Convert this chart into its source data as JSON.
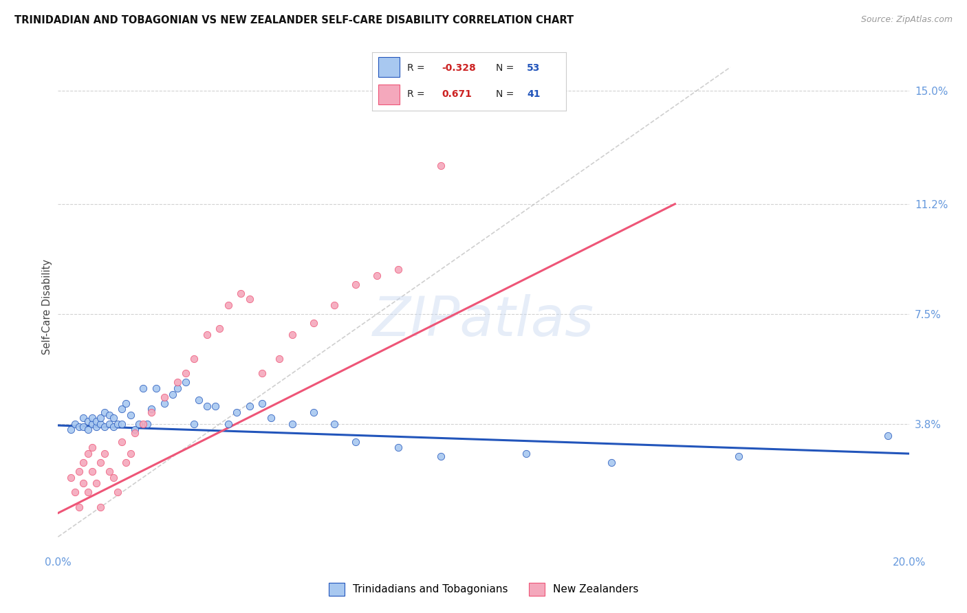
{
  "title": "TRINIDADIAN AND TOBAGONIAN VS NEW ZEALANDER SELF-CARE DISABILITY CORRELATION CHART",
  "source": "Source: ZipAtlas.com",
  "ylabel": "Self-Care Disability",
  "yticks": [
    0.0,
    0.038,
    0.075,
    0.112,
    0.15
  ],
  "ytick_labels": [
    "",
    "3.8%",
    "7.5%",
    "11.2%",
    "15.0%"
  ],
  "xlim": [
    0.0,
    0.2
  ],
  "ylim": [
    -0.005,
    0.16
  ],
  "watermark": "ZIPatlas",
  "color_blue": "#A8C8F0",
  "color_pink": "#F4A8BC",
  "line_blue": "#2255BB",
  "line_pink": "#EE5577",
  "line_diag": "#BBBBBB",
  "tick_color": "#6699DD",
  "blue_scatter_x": [
    0.003,
    0.004,
    0.005,
    0.006,
    0.006,
    0.007,
    0.007,
    0.008,
    0.008,
    0.009,
    0.009,
    0.01,
    0.01,
    0.011,
    0.011,
    0.012,
    0.012,
    0.013,
    0.013,
    0.014,
    0.015,
    0.015,
    0.016,
    0.017,
    0.018,
    0.019,
    0.02,
    0.021,
    0.022,
    0.023,
    0.025,
    0.027,
    0.028,
    0.03,
    0.032,
    0.033,
    0.035,
    0.037,
    0.04,
    0.042,
    0.045,
    0.048,
    0.05,
    0.055,
    0.06,
    0.065,
    0.07,
    0.08,
    0.09,
    0.11,
    0.13,
    0.16,
    0.195
  ],
  "blue_scatter_y": [
    0.036,
    0.038,
    0.037,
    0.037,
    0.04,
    0.036,
    0.039,
    0.038,
    0.04,
    0.037,
    0.039,
    0.038,
    0.04,
    0.037,
    0.042,
    0.038,
    0.041,
    0.037,
    0.04,
    0.038,
    0.043,
    0.038,
    0.045,
    0.041,
    0.036,
    0.038,
    0.05,
    0.038,
    0.043,
    0.05,
    0.045,
    0.048,
    0.05,
    0.052,
    0.038,
    0.046,
    0.044,
    0.044,
    0.038,
    0.042,
    0.044,
    0.045,
    0.04,
    0.038,
    0.042,
    0.038,
    0.032,
    0.03,
    0.027,
    0.028,
    0.025,
    0.027,
    0.034
  ],
  "pink_scatter_x": [
    0.003,
    0.004,
    0.005,
    0.005,
    0.006,
    0.006,
    0.007,
    0.007,
    0.008,
    0.008,
    0.009,
    0.01,
    0.01,
    0.011,
    0.012,
    0.013,
    0.014,
    0.015,
    0.016,
    0.017,
    0.018,
    0.02,
    0.022,
    0.025,
    0.028,
    0.03,
    0.032,
    0.035,
    0.038,
    0.04,
    0.043,
    0.045,
    0.048,
    0.052,
    0.055,
    0.06,
    0.065,
    0.07,
    0.075,
    0.08,
    0.09
  ],
  "pink_scatter_y": [
    0.02,
    0.015,
    0.022,
    0.01,
    0.018,
    0.025,
    0.015,
    0.028,
    0.022,
    0.03,
    0.018,
    0.025,
    0.01,
    0.028,
    0.022,
    0.02,
    0.015,
    0.032,
    0.025,
    0.028,
    0.035,
    0.038,
    0.042,
    0.047,
    0.052,
    0.055,
    0.06,
    0.068,
    0.07,
    0.078,
    0.082,
    0.08,
    0.055,
    0.06,
    0.068,
    0.072,
    0.078,
    0.085,
    0.088,
    0.09,
    0.125
  ],
  "blue_line_x": [
    0.0,
    0.2
  ],
  "blue_line_y": [
    0.0375,
    0.028
  ],
  "pink_line_x": [
    0.0,
    0.145
  ],
  "pink_line_y": [
    0.008,
    0.112
  ],
  "diag_line_x": [
    0.0,
    0.158
  ],
  "diag_line_y": [
    0.0,
    0.158
  ],
  "background_color": "#FFFFFF",
  "grid_color": "#CCCCCC"
}
